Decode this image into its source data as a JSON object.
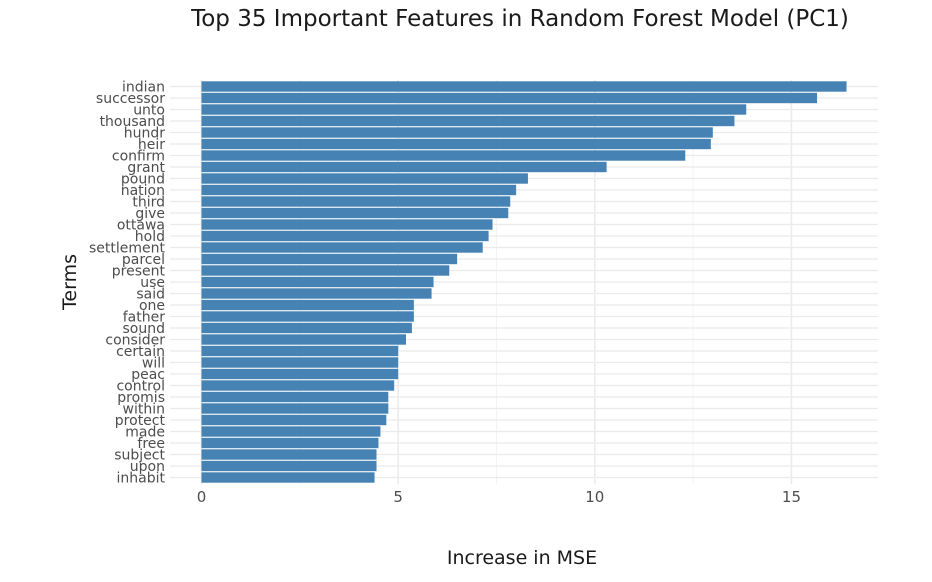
{
  "chart_data": {
    "type": "bar",
    "orientation": "horizontal",
    "title": "Top 35 Important Features in Random Forest Model (PC1)",
    "xlabel": "Increase in MSE",
    "ylabel": "Terms",
    "xlim": [
      -0.8,
      17.2
    ],
    "xticks": [
      0,
      5,
      10,
      15
    ],
    "xtick_labels": [
      "0",
      "5",
      "10",
      "15"
    ],
    "grid": true,
    "bar_color": "#4682B4",
    "grid_color": "#ebebeb",
    "categories": [
      "indian",
      "successor",
      "unto",
      "thousand",
      "hundr",
      "heir",
      "confirm",
      "grant",
      "pound",
      "nation",
      "third",
      "give",
      "ottawa",
      "hold",
      "settlement",
      "parcel",
      "present",
      "use",
      "said",
      "one",
      "father",
      "sound",
      "consider",
      "certain",
      "will",
      "peac",
      "control",
      "promis",
      "within",
      "protect",
      "made",
      "free",
      "subject",
      "upon",
      "inhabit"
    ],
    "values": [
      16.4,
      15.65,
      13.85,
      13.55,
      13.0,
      12.95,
      12.3,
      10.3,
      8.3,
      8.0,
      7.85,
      7.8,
      7.4,
      7.3,
      7.15,
      6.5,
      6.3,
      5.9,
      5.85,
      5.4,
      5.4,
      5.35,
      5.2,
      5.0,
      5.0,
      5.0,
      4.9,
      4.75,
      4.75,
      4.7,
      4.55,
      4.5,
      4.45,
      4.45,
      4.4
    ]
  }
}
